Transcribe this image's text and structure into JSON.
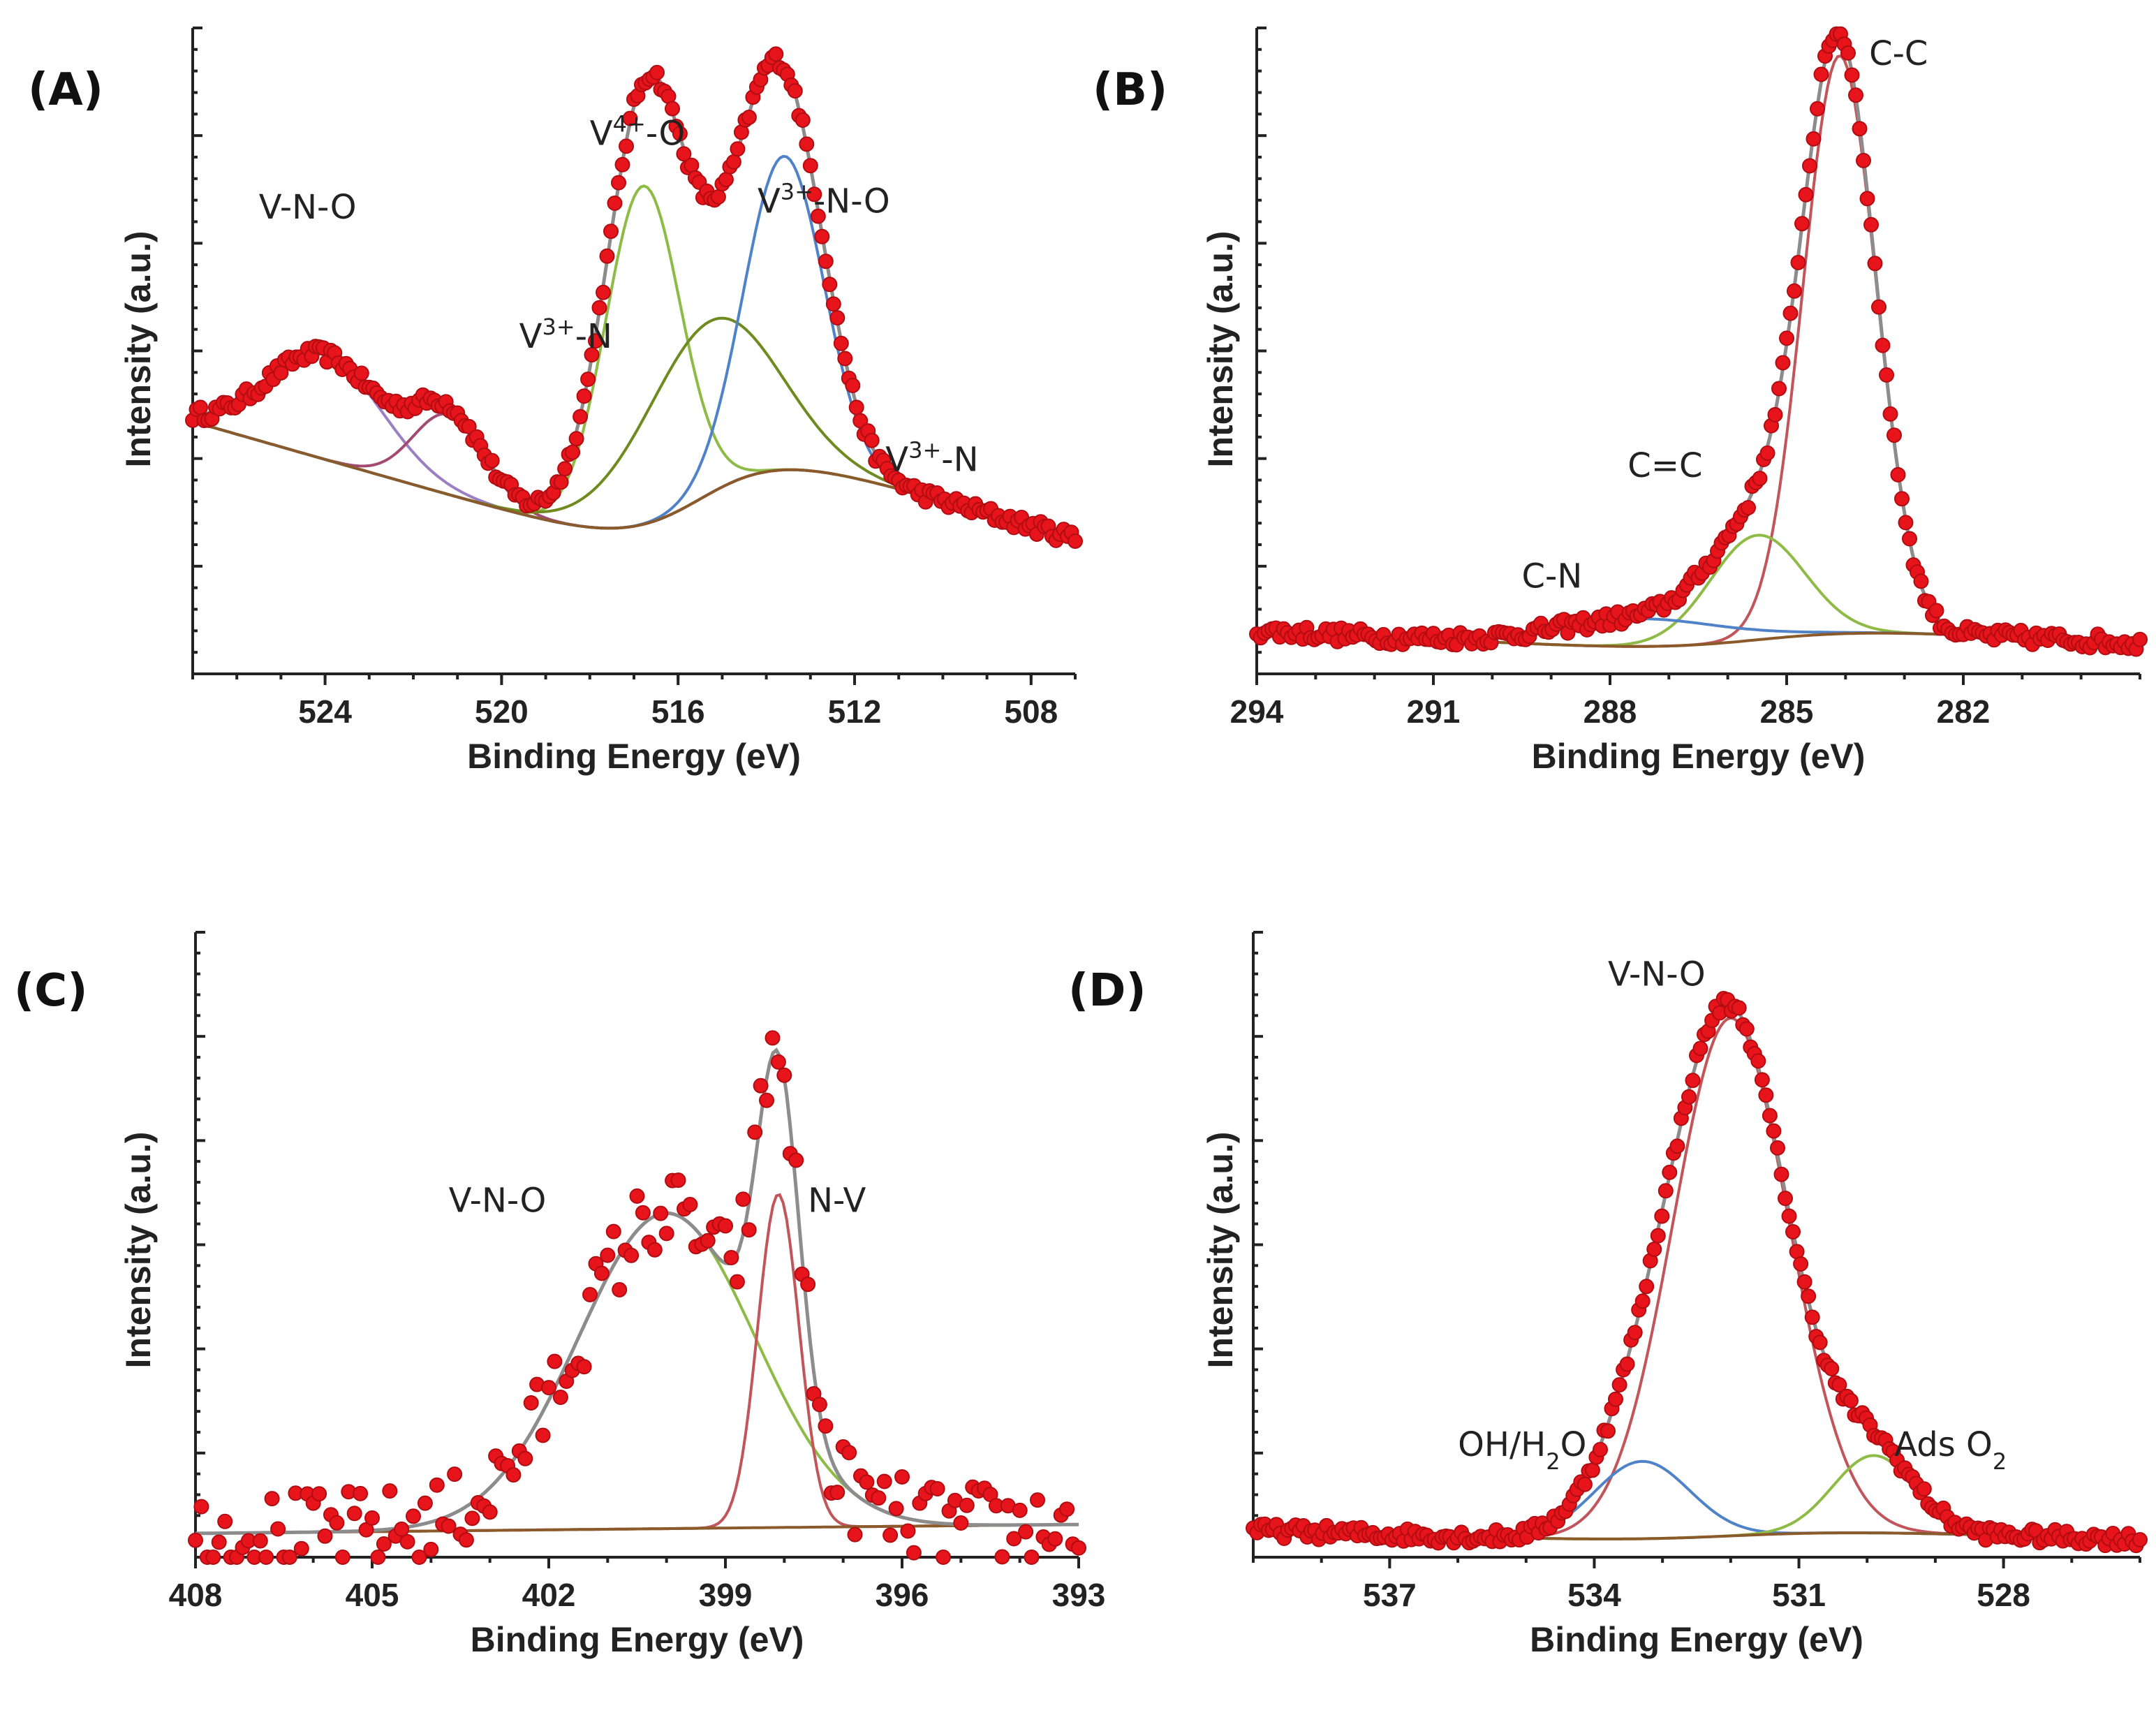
{
  "figure": {
    "xlabel": "Binding Energy (eV)",
    "ylabel": "Intensity (a.u.)"
  },
  "colors": {
    "points": "#e8141b",
    "envelope": "#8c8c8c",
    "background": "#8a5a2b"
  },
  "chart_data": [
    {
      "panel": "(A)",
      "type": "scatter",
      "xlabel": "Binding Energy (eV)",
      "ylabel": "Intensity (a.u.)",
      "xlim": [
        527,
        507
      ],
      "xticks": [
        "524",
        "520",
        "516",
        "512",
        "508"
      ],
      "xtick_values": [
        524,
        520,
        516,
        512,
        508
      ],
      "ylim": [
        0,
        1.05
      ],
      "yticks": 6,
      "grid": false,
      "background": {
        "start": 0.41,
        "end": 0.0,
        "step_center": 515.5,
        "step_height": 0.22
      },
      "components": [
        {
          "name": "V-N-O",
          "center": 524.0,
          "amp": 0.17,
          "width": 1.3,
          "color": "#9b7fc4"
        },
        {
          "name": "V3+-N",
          "center": 521.2,
          "amp": 0.13,
          "width": 0.8,
          "color": "#a34a73"
        },
        {
          "name": "V4+-O",
          "center": 516.8,
          "amp": 0.55,
          "width": 0.85,
          "color": "#8dbb45"
        },
        {
          "name": "V3+-N-O",
          "center": 515.3,
          "amp": 0.28,
          "width": 1.5,
          "color": "#6f8a1f"
        },
        {
          "name": "V3+-N",
          "center": 513.6,
          "amp": 0.51,
          "width": 0.9,
          "color": "#4f82c8"
        }
      ],
      "annotations": [
        {
          "base": "V-N-O",
          "sup": "",
          "rest": "",
          "x": 525.5,
          "y": 0.74
        },
        {
          "base": "V",
          "sup": "4+",
          "rest": "-O",
          "x": 518.0,
          "y": 0.86
        },
        {
          "base": "V",
          "sup": "3+",
          "rest": "-N",
          "x": 519.6,
          "y": 0.53
        },
        {
          "base": "V",
          "sup": "3+",
          "rest": "-N-O",
          "x": 514.2,
          "y": 0.75
        },
        {
          "base": "V",
          "sup": "3+",
          "rest": "-N",
          "x": 511.3,
          "y": 0.33
        }
      ]
    },
    {
      "panel": "(B)",
      "type": "scatter",
      "xlabel": "Binding Energy (eV)",
      "ylabel": "Intensity (a.u.)",
      "xlim": [
        294,
        279
      ],
      "xticks": [
        "294",
        "291",
        "288",
        "285",
        "282"
      ],
      "xtick_values": [
        294,
        291,
        288,
        285,
        282
      ],
      "ylim": [
        0,
        1.05
      ],
      "yticks": 6,
      "grid": false,
      "background": {
        "start": 0.07,
        "end": 0.0,
        "step_center": 285.5,
        "step_height": 0.05
      },
      "components": [
        {
          "name": "C-C",
          "center": 284.1,
          "amp": 0.94,
          "width": 0.62,
          "color": "#c2555a"
        },
        {
          "name": "C=C",
          "center": 285.5,
          "amp": 0.17,
          "width": 0.8,
          "color": "#8dbb45"
        },
        {
          "name": "C-N",
          "center": 287.5,
          "amp": 0.045,
          "width": 1.4,
          "color": "#4f82c8"
        }
      ],
      "annotations": [
        {
          "base": "C-C",
          "sup": "",
          "rest": "",
          "x": 283.6,
          "y": 0.99
        },
        {
          "base": "C=C",
          "sup": "",
          "rest": "",
          "x": 287.7,
          "y": 0.32
        },
        {
          "base": "C-N",
          "sup": "",
          "rest": "",
          "x": 289.5,
          "y": 0.14
        }
      ]
    },
    {
      "panel": "(C)",
      "type": "scatter",
      "xlabel": "Binding Energy (eV)",
      "ylabel": "Intensity (a.u.)",
      "xlim": [
        408,
        393
      ],
      "xticks": [
        "408",
        "405",
        "402",
        "399",
        "396",
        "393"
      ],
      "xtick_values": [
        408,
        405,
        402,
        399,
        396,
        393
      ],
      "ylim": [
        0,
        1.05
      ],
      "yticks": 6,
      "grid": false,
      "background": {
        "start": 0.04,
        "end": 0.055,
        "step_center": 399,
        "step_height": 0.0
      },
      "components": [
        {
          "name": "V-N-O",
          "center": 400.0,
          "amp": 0.53,
          "width": 1.5,
          "color": "#8dbb45"
        },
        {
          "name": "N-V",
          "center": 398.1,
          "amp": 0.56,
          "width": 0.35,
          "color": "#c2555a"
        }
      ],
      "annotations": [
        {
          "base": "V-N-O",
          "sup": "",
          "rest": "",
          "x": 403.7,
          "y": 0.58
        },
        {
          "base": "N-V",
          "sup": "",
          "rest": "",
          "x": 397.6,
          "y": 0.58
        }
      ]
    },
    {
      "panel": "(D)",
      "type": "scatter",
      "xlabel": "Binding Energy (eV)",
      "ylabel": "Intensity (a.u.)",
      "xlim": [
        539,
        526
      ],
      "xticks": [
        "537",
        "534",
        "531",
        "528"
      ],
      "xtick_values": [
        537,
        534,
        531,
        528
      ],
      "ylim": [
        0,
        1.05
      ],
      "yticks": 6,
      "grid": false,
      "background": {
        "start": 0.045,
        "end": 0.0,
        "step_center": 532,
        "step_height": 0.03
      },
      "components": [
        {
          "name": "V-N-O",
          "center": 532.0,
          "amp": 0.87,
          "width": 0.85,
          "color": "#c2555a"
        },
        {
          "name": "OH/H2O",
          "center": 533.3,
          "amp": 0.13,
          "width": 0.7,
          "color": "#4f82c8"
        },
        {
          "name": "Ads O2",
          "center": 529.9,
          "amp": 0.13,
          "width": 0.6,
          "color": "#8dbb45"
        }
      ],
      "annotations": [
        {
          "base": "V-N-O",
          "sup": "",
          "rest": "",
          "x": 533.8,
          "y": 0.96
        },
        {
          "base": "OH/H",
          "sub": "2",
          "rest": "O",
          "x": 536.0,
          "y": 0.17
        },
        {
          "base": "Ads O",
          "sub": "2",
          "rest": "",
          "x": 529.6,
          "y": 0.17
        }
      ]
    }
  ]
}
